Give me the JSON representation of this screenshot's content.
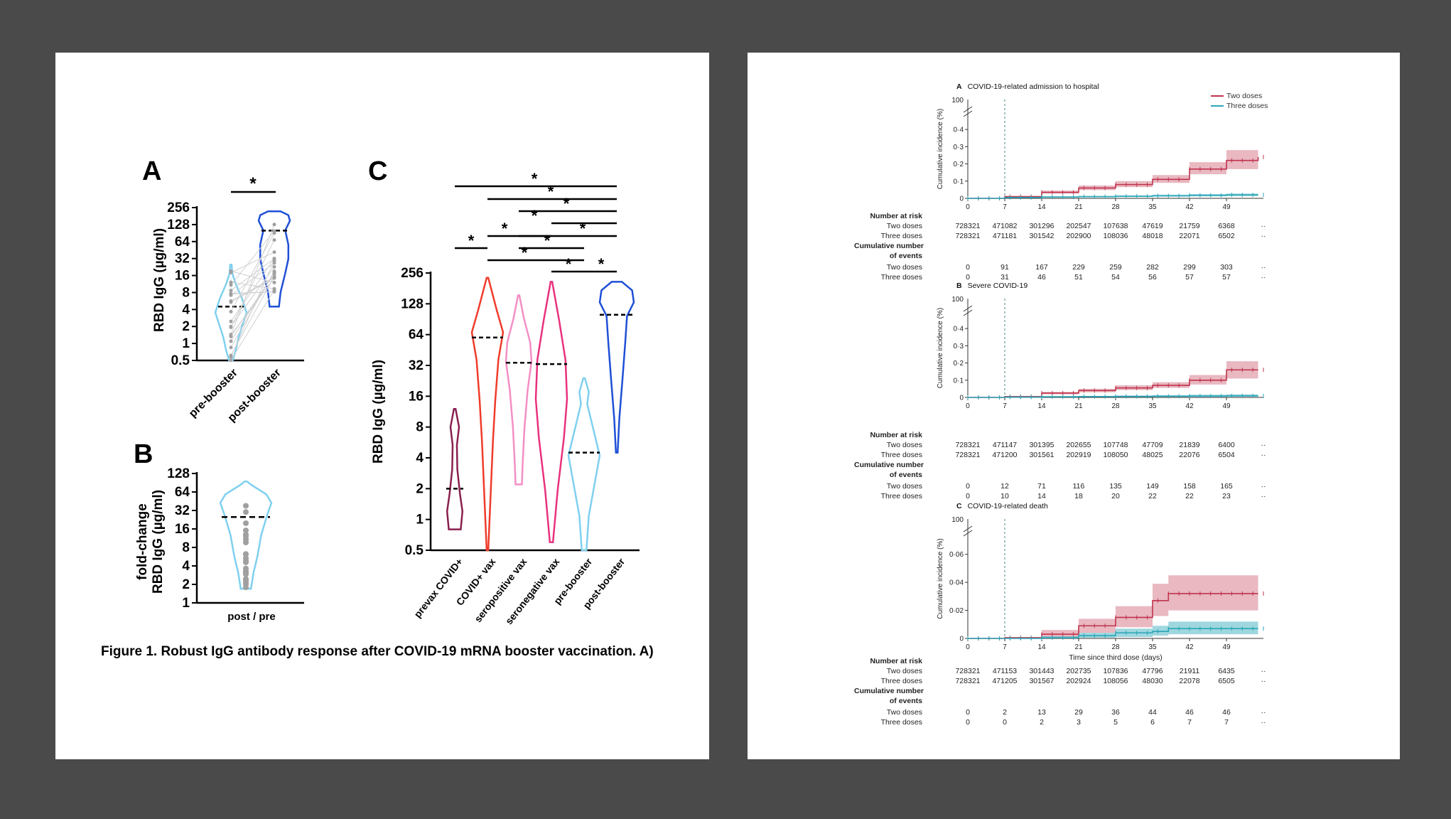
{
  "left_figure": {
    "caption": "Figure 1. Robust IgG antibody response after COVID-19 mRNA booster vaccination. A)",
    "panel_a": {
      "letter": "A",
      "ylabel": "RBD IgG (µg/ml)",
      "yticks": [
        "256",
        "128",
        "64",
        "32",
        "16",
        "8",
        "4",
        "2",
        "1",
        "0.5"
      ],
      "categories": [
        "pre-booster",
        "post-booster"
      ],
      "significance": "*"
    },
    "panel_b": {
      "letter": "B",
      "ylabel_line1": "fold-change",
      "ylabel_line2": "RBD IgG (µg/ml)",
      "yticks": [
        "128",
        "64",
        "32",
        "16",
        "8",
        "4",
        "2",
        "1"
      ],
      "categories": [
        "post / pre"
      ]
    },
    "panel_c": {
      "letter": "C",
      "ylabel": "RBD IgG (µg/ml)",
      "yticks": [
        "256",
        "128",
        "64",
        "32",
        "16",
        "8",
        "4",
        "2",
        "1",
        "0.5"
      ],
      "categories": [
        "prevax COVID+",
        "COVID+ vax",
        "seropositive vax",
        "seronegative vax",
        "pre-booster",
        "post-booster"
      ],
      "significance": "*"
    }
  },
  "chart_data": [
    {
      "type": "violin",
      "panel": "A",
      "ylabel": "RBD IgG (µg/ml)",
      "yscale": "log2",
      "ylim": [
        0.5,
        256
      ],
      "categories": [
        "pre-booster",
        "post-booster"
      ],
      "medians": [
        4.5,
        100
      ],
      "ranges": [
        [
          0.5,
          25
        ],
        [
          4.5,
          220
        ]
      ],
      "colors": [
        "#7fd0ef",
        "#1f4fd6"
      ],
      "comparisons": [
        {
          "pair": [
            "pre-booster",
            "post-booster"
          ],
          "label": "*"
        }
      ]
    },
    {
      "type": "violin",
      "panel": "B",
      "ylabel": "fold-change RBD IgG (µg/ml)",
      "yscale": "log2",
      "ylim": [
        1,
        128
      ],
      "categories": [
        "post / pre"
      ],
      "medians": [
        25
      ],
      "ranges": [
        [
          1.7,
          95
        ]
      ],
      "colors": [
        "#7fd0ef"
      ]
    },
    {
      "type": "violin",
      "panel": "C",
      "ylabel": "RBD IgG (µg/ml)",
      "yscale": "log2",
      "ylim": [
        0.5,
        256
      ],
      "categories": [
        "prevax COVID+",
        "COVID+ vax",
        "seropositive vax",
        "seronegative vax",
        "pre-booster",
        "post-booster"
      ],
      "medians": [
        2,
        60,
        34,
        33,
        4.5,
        100
      ],
      "ranges": [
        [
          0.8,
          12
        ],
        [
          0.5,
          230
        ],
        [
          2.2,
          155
        ],
        [
          0.6,
          210
        ],
        [
          0.5,
          24
        ],
        [
          4.5,
          210
        ]
      ],
      "colors": [
        "#8a1f4f",
        "#ef3b2a",
        "#f48fc5",
        "#e8317d",
        "#7fd0ef",
        "#1f4fd6"
      ],
      "comparisons": [
        {
          "pair": [
            "prevax COVID+",
            "post-booster"
          ],
          "label": "*"
        },
        {
          "pair": [
            "COVID+ vax",
            "post-booster"
          ],
          "label": "*"
        },
        {
          "pair": [
            "seropositive vax",
            "post-booster"
          ],
          "label": "*"
        },
        {
          "pair": [
            "seronegative vax",
            "post-booster"
          ],
          "label": "*"
        },
        {
          "pair": [
            "COVID+ vax",
            "seronegative vax"
          ],
          "label": "*"
        },
        {
          "pair": [
            "seropositive vax",
            "post-booster"
          ],
          "label": "*"
        },
        {
          "pair": [
            "prevax COVID+",
            "COVID+ vax"
          ],
          "label": "*"
        },
        {
          "pair": [
            "seropositive vax",
            "pre-booster"
          ],
          "label": "*"
        },
        {
          "pair": [
            "COVID+ vax",
            "pre-booster"
          ],
          "label": "*"
        },
        {
          "pair": [
            "seronegative vax",
            "pre-booster"
          ],
          "label": "*"
        },
        {
          "pair": [
            "pre-booster",
            "post-booster"
          ],
          "label": "*"
        }
      ]
    },
    {
      "type": "line",
      "panel": "A",
      "title": "COVID-19-related admission to hospital",
      "xlabel": "",
      "ylabel": "Cumulative incidence (%)",
      "xticks": [
        0,
        7,
        14,
        21,
        28,
        35,
        42,
        49
      ],
      "yticks": [
        "0",
        "0·1",
        "0·2",
        "0·3",
        "0·4",
        "100"
      ],
      "ylim": [
        0,
        0.45
      ],
      "series": [
        {
          "name": "Two doses",
          "color": "#c0334d",
          "x": [
            0,
            7,
            14,
            21,
            28,
            35,
            42,
            49,
            55
          ],
          "y": [
            0,
            0.01,
            0.035,
            0.06,
            0.08,
            0.11,
            0.17,
            0.22,
            0.24
          ],
          "ci_high": [
            0,
            0.013,
            0.045,
            0.075,
            0.1,
            0.135,
            0.21,
            0.28,
            0.3
          ],
          "ci_low": [
            0,
            0.007,
            0.028,
            0.048,
            0.065,
            0.09,
            0.14,
            0.17,
            0.17
          ]
        },
        {
          "name": "Three doses",
          "color": "#2aa6b8",
          "x": [
            0,
            7,
            14,
            21,
            28,
            35,
            42,
            49,
            55
          ],
          "y": [
            0,
            0.005,
            0.008,
            0.01,
            0.012,
            0.015,
            0.018,
            0.02,
            0.02
          ],
          "ci_high": [
            0,
            0.007,
            0.011,
            0.014,
            0.017,
            0.021,
            0.025,
            0.028,
            0.028
          ],
          "ci_low": [
            0,
            0.003,
            0.006,
            0.007,
            0.008,
            0.01,
            0.012,
            0.013,
            0.013
          ]
        }
      ],
      "risk_table": {
        "number_at_risk_label": "Number at risk",
        "events_label_line1": "Cumulative number",
        "events_label_line2": "of events",
        "rows": [
          {
            "label": "Two doses",
            "values": [
              "728321",
              "471082",
              "301296",
              "202547",
              "107638",
              "47619",
              "21759",
              "6368",
              "··"
            ]
          },
          {
            "label": "Three doses",
            "values": [
              "728321",
              "471181",
              "301542",
              "202900",
              "108036",
              "48018",
              "22071",
              "6502",
              "··"
            ]
          }
        ],
        "event_rows": [
          {
            "label": "Two doses",
            "values": [
              "0",
              "91",
              "167",
              "229",
              "259",
              "282",
              "299",
              "303",
              "··"
            ]
          },
          {
            "label": "Three doses",
            "values": [
              "0",
              "31",
              "46",
              "51",
              "54",
              "56",
              "57",
              "57",
              "··"
            ]
          }
        ]
      }
    },
    {
      "type": "line",
      "panel": "B",
      "title": "Severe COVID-19",
      "xlabel": "",
      "ylabel": "Cumulative incidence (%)",
      "xticks": [
        0,
        7,
        14,
        21,
        28,
        35,
        42,
        49
      ],
      "yticks": [
        "0",
        "0·1",
        "0·2",
        "0·3",
        "0·4",
        "100"
      ],
      "ylim": [
        0,
        0.45
      ],
      "series": [
        {
          "name": "Two doses",
          "color": "#c0334d",
          "x": [
            0,
            7,
            14,
            21,
            28,
            35,
            42,
            49,
            55
          ],
          "y": [
            0,
            0.005,
            0.025,
            0.04,
            0.055,
            0.07,
            0.1,
            0.16,
            0.16
          ],
          "ci_high": [
            0,
            0.007,
            0.032,
            0.05,
            0.07,
            0.088,
            0.13,
            0.21,
            0.21
          ],
          "ci_low": [
            0,
            0.003,
            0.018,
            0.03,
            0.043,
            0.055,
            0.075,
            0.11,
            0.11
          ]
        },
        {
          "name": "Three doses",
          "color": "#2aa6b8",
          "x": [
            0,
            7,
            14,
            21,
            28,
            35,
            42,
            49,
            55
          ],
          "y": [
            0,
            0.002,
            0.004,
            0.005,
            0.006,
            0.007,
            0.008,
            0.009,
            0.009
          ],
          "ci_high": [
            0,
            0.004,
            0.007,
            0.009,
            0.011,
            0.013,
            0.016,
            0.018,
            0.018
          ],
          "ci_low": [
            0,
            0.001,
            0.002,
            0.003,
            0.003,
            0.003,
            0.003,
            0.004,
            0.004
          ]
        }
      ],
      "risk_table": {
        "number_at_risk_label": "Number at risk",
        "events_label_line1": "Cumulative number",
        "events_label_line2": "of events",
        "rows": [
          {
            "label": "Two doses",
            "values": [
              "728321",
              "471147",
              "301395",
              "202655",
              "107748",
              "47709",
              "21839",
              "6400",
              "··"
            ]
          },
          {
            "label": "Three doses",
            "values": [
              "728321",
              "471200",
              "301561",
              "202919",
              "108050",
              "48025",
              "22076",
              "6504",
              "··"
            ]
          }
        ],
        "event_rows": [
          {
            "label": "Two doses",
            "values": [
              "0",
              "12",
              "71",
              "116",
              "135",
              "149",
              "158",
              "165",
              "··"
            ]
          },
          {
            "label": "Three doses",
            "values": [
              "0",
              "10",
              "14",
              "18",
              "20",
              "22",
              "22",
              "23",
              "··"
            ]
          }
        ]
      }
    },
    {
      "type": "line",
      "panel": "C",
      "title": "COVID-19-related death",
      "xlabel": "Time since third dose (days)",
      "ylabel": "Cumulative incidence (%)",
      "xticks": [
        0,
        7,
        14,
        21,
        28,
        35,
        42,
        49
      ],
      "yticks": [
        "0",
        "0·02",
        "0·04",
        "0·06",
        "100"
      ],
      "ylim": [
        0,
        0.07
      ],
      "series": [
        {
          "name": "Two doses",
          "color": "#c0334d",
          "x": [
            0,
            7,
            14,
            21,
            28,
            35,
            38,
            42,
            49,
            55
          ],
          "y": [
            0,
            0.0005,
            0.003,
            0.009,
            0.015,
            0.027,
            0.032,
            0.032,
            0.032,
            0.032
          ],
          "ci_high": [
            0,
            0.001,
            0.006,
            0.014,
            0.023,
            0.039,
            0.045,
            0.045,
            0.045,
            0.045
          ],
          "ci_low": [
            0,
            0,
            0.001,
            0.004,
            0.008,
            0.016,
            0.02,
            0.02,
            0.02,
            0.02
          ]
        },
        {
          "name": "Three doses",
          "color": "#2aa6b8",
          "x": [
            0,
            7,
            14,
            21,
            28,
            35,
            38,
            42,
            49,
            55
          ],
          "y": [
            0,
            0,
            0.0005,
            0.002,
            0.004,
            0.005,
            0.007,
            0.007,
            0.007,
            0.007
          ],
          "ci_high": [
            0,
            0,
            0.0015,
            0.004,
            0.007,
            0.009,
            0.012,
            0.012,
            0.012,
            0.012
          ],
          "ci_low": [
            0,
            0,
            0,
            0.0005,
            0.001,
            0.002,
            0.003,
            0.003,
            0.003,
            0.003
          ]
        }
      ],
      "risk_table": {
        "number_at_risk_label": "Number at risk",
        "events_label_line1": "Cumulative number",
        "events_label_line2": "of events",
        "rows": [
          {
            "label": "Two doses",
            "values": [
              "728321",
              "471153",
              "301443",
              "202735",
              "107836",
              "47796",
              "21911",
              "6435",
              "··"
            ]
          },
          {
            "label": "Three doses",
            "values": [
              "728321",
              "471205",
              "301567",
              "202924",
              "108056",
              "48030",
              "22078",
              "6505",
              "··"
            ]
          }
        ],
        "event_rows": [
          {
            "label": "Two doses",
            "values": [
              "0",
              "2",
              "13",
              "29",
              "36",
              "44",
              "46",
              "46",
              "··"
            ]
          },
          {
            "label": "Three doses",
            "values": [
              "0",
              "0",
              "2",
              "3",
              "5",
              "6",
              "7",
              "7",
              "··"
            ]
          }
        ]
      }
    }
  ]
}
